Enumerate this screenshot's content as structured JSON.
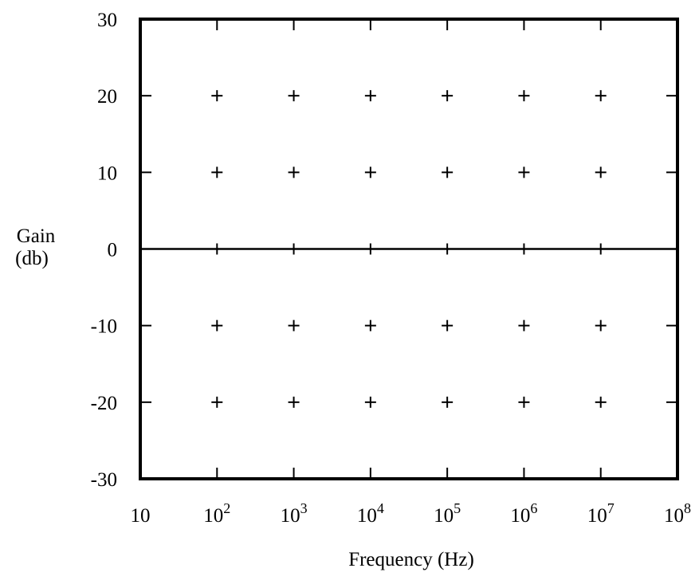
{
  "chart_data": {
    "type": "scatter",
    "title": "",
    "xlabel": "Frequency (Hz)",
    "ylabel_lines": [
      "Gain",
      "(db)"
    ],
    "x_scale": "log",
    "xlim": [
      10,
      100000000
    ],
    "ylim": [
      -30,
      30
    ],
    "x_ticks": [
      {
        "value": 10,
        "base": "10",
        "exp": ""
      },
      {
        "value": 100,
        "base": "10",
        "exp": "2"
      },
      {
        "value": 1000,
        "base": "10",
        "exp": "3"
      },
      {
        "value": 10000,
        "base": "10",
        "exp": "4"
      },
      {
        "value": 100000,
        "base": "10",
        "exp": "5"
      },
      {
        "value": 1000000,
        "base": "10",
        "exp": "6"
      },
      {
        "value": 10000000,
        "base": "10",
        "exp": "7"
      },
      {
        "value": 100000000,
        "base": "10",
        "exp": "8"
      }
    ],
    "y_ticks": [
      {
        "value": 30,
        "label": "30"
      },
      {
        "value": 20,
        "label": "20"
      },
      {
        "value": 10,
        "label": "10"
      },
      {
        "value": 0,
        "label": "0"
      },
      {
        "value": -10,
        "label": "-10"
      },
      {
        "value": -20,
        "label": "-20"
      },
      {
        "value": -30,
        "label": "-30"
      }
    ],
    "zero_line": true,
    "grid": "plus-markers",
    "grid_x": [
      100,
      1000,
      10000,
      100000,
      1000000,
      10000000
    ],
    "grid_y": [
      20,
      10,
      -10,
      -20
    ],
    "color": "#000000"
  }
}
